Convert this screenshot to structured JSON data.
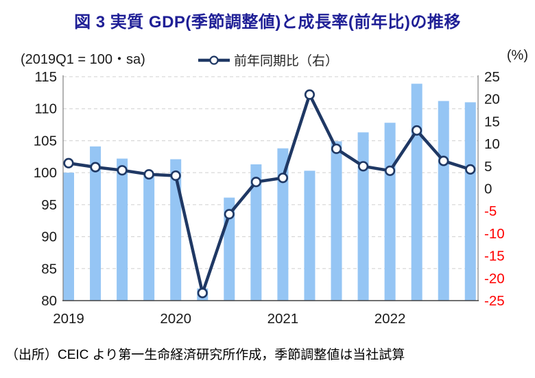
{
  "title": "図 3  実質 GDP(季節調整値)と成長率(前年比)の推移",
  "left_axis_note": "(2019Q1 = 100・sa)",
  "right_axis_note": "(%)",
  "legend_label": "前年同期比（右）",
  "source": "（出所）CEIC より第一生命経済研究所作成，季節調整値は当社試算",
  "colors": {
    "title": "#1F1F96",
    "bar": "#95C5F4",
    "line": "#1F3864",
    "marker_fill": "#FFFFFF",
    "grid": "#D9D9D9",
    "axis": "#808080",
    "baseline": "#404040",
    "tick_text": "#1a1a1a",
    "negative_tick": "#FF0000"
  },
  "chart_data": {
    "type": "bar+line combo",
    "title": "実質GDP(季節調整値)と成長率(前年比)の推移",
    "categories": [
      "2019Q1",
      "2019Q2",
      "2019Q3",
      "2019Q4",
      "2020Q1",
      "2020Q2",
      "2020Q3",
      "2020Q4",
      "2021Q1",
      "2021Q2",
      "2021Q3",
      "2021Q4",
      "2022Q1",
      "2022Q2",
      "2022Q3",
      "2022Q4"
    ],
    "series": [
      {
        "name": "実質GDP(季節調整値)",
        "type": "bar",
        "axis": "left",
        "values": [
          100.0,
          104.1,
          102.2,
          99.7,
          102.1,
          81.9,
          96.1,
          101.3,
          103.8,
          100.3,
          104.9,
          106.3,
          107.8,
          113.9,
          111.2,
          111.0
        ]
      },
      {
        "name": "前年同期比（右）",
        "type": "line",
        "axis": "right",
        "values": [
          5.7,
          4.8,
          4.1,
          3.2,
          2.9,
          -23.3,
          -5.7,
          1.5,
          2.4,
          21.0,
          8.9,
          5.0,
          4.0,
          13.0,
          6.2,
          4.3
        ]
      }
    ],
    "left_axis": {
      "label": "(2019Q1 = 100・sa)",
      "min": 80,
      "max": 115,
      "step": 5,
      "ticks": [
        "115",
        "110",
        "105",
        "100",
        "95",
        "90",
        "85",
        "80"
      ]
    },
    "right_axis": {
      "label": "(%)",
      "min": -25,
      "max": 25,
      "step": 5,
      "ticks": [
        "25",
        "20",
        "15",
        "10",
        "5",
        "0",
        "-5",
        "-10",
        "-15",
        "-20",
        "-25"
      ]
    },
    "x_year_labels": [
      {
        "label": "2019",
        "quarter_index": 0
      },
      {
        "label": "2020",
        "quarter_index": 4
      },
      {
        "label": "2021",
        "quarter_index": 8
      },
      {
        "label": "2022",
        "quarter_index": 12
      }
    ],
    "grid": "horizontal dashed",
    "legend_position": "top-center"
  }
}
